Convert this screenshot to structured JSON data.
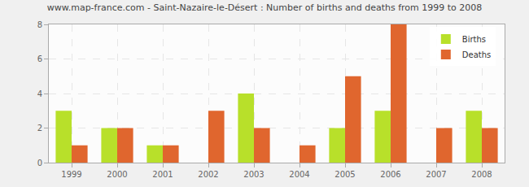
{
  "chart_data": {
    "type": "bar",
    "title": "www.map-france.com - Saint-Nazaire-le-Désert : Number of births and deaths from 1999 to 2008",
    "categories": [
      "1999",
      "2000",
      "2001",
      "2002",
      "2003",
      "2004",
      "2005",
      "2006",
      "2007",
      "2008"
    ],
    "series": [
      {
        "name": "Births",
        "color": "#b8e02a",
        "values": [
          3,
          2,
          1,
          0,
          4,
          0,
          2,
          3,
          0,
          3
        ]
      },
      {
        "name": "Deaths",
        "color": "#e0662e",
        "values": [
          1,
          2,
          1,
          3,
          2,
          1,
          5,
          8,
          2,
          2
        ]
      }
    ],
    "ylim": [
      0,
      8
    ],
    "yticks": [
      0,
      2,
      4,
      6,
      8
    ],
    "grid": true,
    "legend": "upper right"
  }
}
